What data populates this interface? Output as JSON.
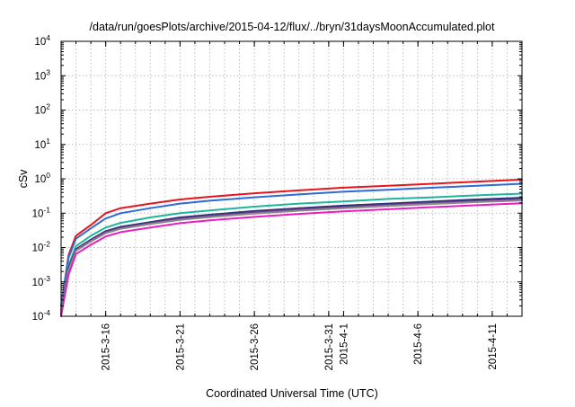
{
  "chart_data": {
    "type": "line",
    "title": "/data/run/goesPlots/archive/2015-04-12/flux/../bryn/31daysMoonAccumulated.plot",
    "xlabel": "Coordinated Universal Time (UTC)",
    "ylabel": "cSv",
    "yscale": "log",
    "ylim": [
      0.0001,
      10000
    ],
    "xlim": [
      "2015-03-13",
      "2015-04-13"
    ],
    "grid": true,
    "legend": "none",
    "y_ticks": [
      {
        "value": 0.0001,
        "base": "10",
        "exp": "-4"
      },
      {
        "value": 0.001,
        "base": "10",
        "exp": "-3"
      },
      {
        "value": 0.01,
        "base": "10",
        "exp": "-2"
      },
      {
        "value": 0.1,
        "base": "10",
        "exp": "-1"
      },
      {
        "value": 1,
        "base": "10",
        "exp": "0"
      },
      {
        "value": 10,
        "base": "10",
        "exp": "1"
      },
      {
        "value": 100,
        "base": "10",
        "exp": "2"
      },
      {
        "value": 1000,
        "base": "10",
        "exp": "3"
      },
      {
        "value": 10000,
        "base": "10",
        "exp": "4"
      }
    ],
    "x_ticks": [
      {
        "date": "2015-03-16",
        "label": "2015-3-16"
      },
      {
        "date": "2015-03-21",
        "label": "2015-3-21"
      },
      {
        "date": "2015-03-26",
        "label": "2015-3-26"
      },
      {
        "date": "2015-03-31",
        "label": "2015-3-31"
      },
      {
        "date": "2015-04-01",
        "label": "2015-4-1"
      },
      {
        "date": "2015-04-06",
        "label": "2015-4-6"
      },
      {
        "date": "2015-04-11",
        "label": "2015-4-11"
      }
    ],
    "x_grid_dates": [
      "2015-03-14",
      "2015-03-15",
      "2015-03-16",
      "2015-03-17",
      "2015-03-18",
      "2015-03-19",
      "2015-03-20",
      "2015-03-21",
      "2015-03-22",
      "2015-03-23",
      "2015-03-24",
      "2015-03-25",
      "2015-03-26",
      "2015-03-27",
      "2015-03-28",
      "2015-03-29",
      "2015-03-30",
      "2015-03-31",
      "2015-04-01",
      "2015-04-02",
      "2015-04-03",
      "2015-04-04",
      "2015-04-05",
      "2015-04-06",
      "2015-04-07",
      "2015-04-08",
      "2015-04-09",
      "2015-04-10",
      "2015-04-11",
      "2015-04-12"
    ],
    "x": [
      "2015-03-13",
      "2015-03-13T12:00",
      "2015-03-14",
      "2015-03-15",
      "2015-03-16",
      "2015-03-17",
      "2015-03-19",
      "2015-03-21",
      "2015-03-23",
      "2015-03-26",
      "2015-03-29",
      "2015-04-01",
      "2015-04-04",
      "2015-04-07",
      "2015-04-10",
      "2015-04-13"
    ],
    "series": [
      {
        "color": "#e8141c",
        "values": [
          0.0002,
          0.006,
          0.022,
          0.045,
          0.1,
          0.14,
          0.19,
          0.25,
          0.3,
          0.38,
          0.46,
          0.55,
          0.63,
          0.72,
          0.83,
          0.95
        ]
      },
      {
        "color": "#2d6bd6",
        "values": [
          0.0002,
          0.005,
          0.018,
          0.036,
          0.07,
          0.1,
          0.14,
          0.19,
          0.23,
          0.29,
          0.35,
          0.42,
          0.48,
          0.55,
          0.63,
          0.72
        ]
      },
      {
        "color": "#1fb59a",
        "values": [
          0.00015,
          0.003,
          0.011,
          0.022,
          0.038,
          0.052,
          0.075,
          0.1,
          0.12,
          0.155,
          0.19,
          0.22,
          0.26,
          0.29,
          0.33,
          0.37
        ]
      },
      {
        "color": "#2b2f7a",
        "values": [
          0.00012,
          0.0025,
          0.009,
          0.017,
          0.03,
          0.04,
          0.055,
          0.075,
          0.09,
          0.115,
          0.14,
          0.165,
          0.19,
          0.22,
          0.25,
          0.28
        ]
      },
      {
        "color": "#6e3d8a",
        "values": [
          0.00011,
          0.0023,
          0.0085,
          0.016,
          0.028,
          0.037,
          0.051,
          0.069,
          0.083,
          0.105,
          0.13,
          0.15,
          0.175,
          0.2,
          0.225,
          0.25
        ]
      },
      {
        "color": "#8a8a8a",
        "values": [
          0.0001,
          0.0021,
          0.008,
          0.015,
          0.026,
          0.035,
          0.048,
          0.064,
          0.077,
          0.097,
          0.118,
          0.14,
          0.162,
          0.185,
          0.21,
          0.235
        ]
      },
      {
        "color": "#e61fc0",
        "values": [
          0.0001,
          0.0016,
          0.0065,
          0.012,
          0.021,
          0.028,
          0.038,
          0.051,
          0.062,
          0.078,
          0.095,
          0.113,
          0.13,
          0.15,
          0.17,
          0.195
        ]
      }
    ]
  }
}
